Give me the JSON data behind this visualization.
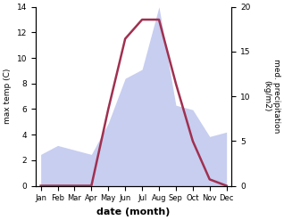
{
  "months": [
    "Jan",
    "Feb",
    "Mar",
    "Apr",
    "May",
    "Jun",
    "Jul",
    "Aug",
    "Sep",
    "Oct",
    "Nov",
    "Dec"
  ],
  "max_temp": [
    0.0,
    0.0,
    0.0,
    0.0,
    6.0,
    11.5,
    13.0,
    13.0,
    8.0,
    3.5,
    0.5,
    0.0
  ],
  "precipitation": [
    3.5,
    4.5,
    4.0,
    3.5,
    7.0,
    12.0,
    13.0,
    20.0,
    9.0,
    8.5,
    5.5,
    6.0
  ],
  "temp_color": "#a03050",
  "precip_fill_color": "#aab4e8",
  "precip_fill_alpha": 0.65,
  "ylabel_left": "max temp (C)",
  "ylabel_right": "med. precipitation\n(kg/m2)",
  "xlabel": "date (month)",
  "ylim_left": [
    0,
    14
  ],
  "ylim_right": [
    0,
    20
  ],
  "yticks_left": [
    0,
    2,
    4,
    6,
    8,
    10,
    12,
    14
  ],
  "yticks_right": [
    0,
    5,
    10,
    15,
    20
  ],
  "background_color": "#ffffff"
}
